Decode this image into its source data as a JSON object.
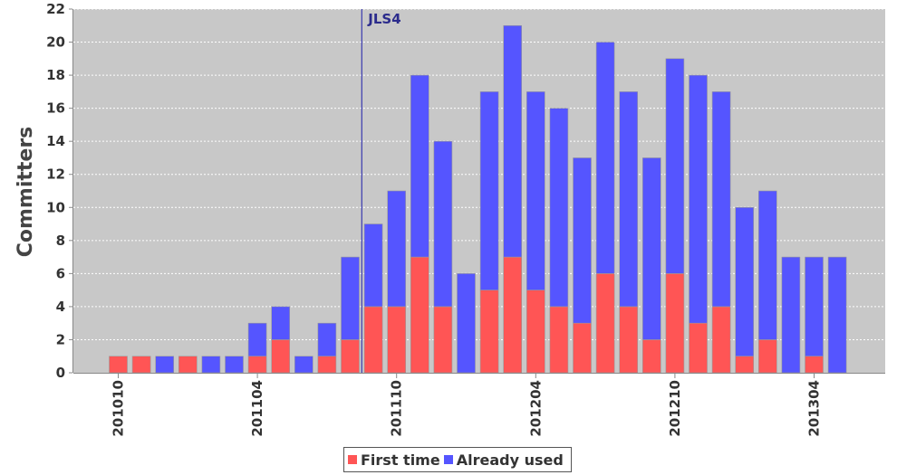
{
  "chart_data": {
    "type": "bar",
    "stacked": true,
    "ylabel": "Committers",
    "xlabel": "",
    "ylim": [
      0,
      22
    ],
    "y_ticks": [
      0,
      2,
      4,
      6,
      8,
      10,
      12,
      14,
      16,
      18,
      20,
      22
    ],
    "grid": true,
    "legend_position": "bottom-center",
    "x_tick_labels": [
      "201010",
      "201104",
      "201110",
      "201204",
      "201210",
      "201304"
    ],
    "categories": [
      "201010",
      "201011",
      "201012",
      "201101",
      "201102",
      "201103",
      "201104",
      "201105",
      "201106",
      "201107",
      "201108",
      "201109",
      "201110",
      "201111",
      "201112",
      "201201",
      "201202",
      "201203",
      "201204",
      "201205",
      "201206",
      "201207",
      "201208",
      "201209",
      "201210",
      "201211",
      "201212",
      "201301",
      "201302",
      "201303",
      "201304",
      "201305"
    ],
    "series": [
      {
        "name": "First time",
        "color": "#ff5555",
        "values": [
          1,
          1,
          0,
          1,
          0,
          0,
          1,
          2,
          0,
          1,
          2,
          4,
          4,
          7,
          4,
          0,
          5,
          7,
          5,
          4,
          3,
          6,
          4,
          2,
          6,
          3,
          4,
          1,
          2,
          0,
          1,
          0
        ]
      },
      {
        "name": "Already used",
        "color": "#5555ff",
        "values": [
          0,
          0,
          1,
          0,
          1,
          1,
          2,
          2,
          1,
          2,
          5,
          5,
          7,
          11,
          10,
          6,
          12,
          14,
          12,
          12,
          10,
          14,
          13,
          11,
          13,
          15,
          13,
          9,
          9,
          7,
          6,
          7
        ]
      }
    ],
    "annotations": [
      {
        "label": "JLS4",
        "x_between": [
          "201108",
          "201109"
        ]
      }
    ],
    "plot_background": "#c8c8c8"
  }
}
